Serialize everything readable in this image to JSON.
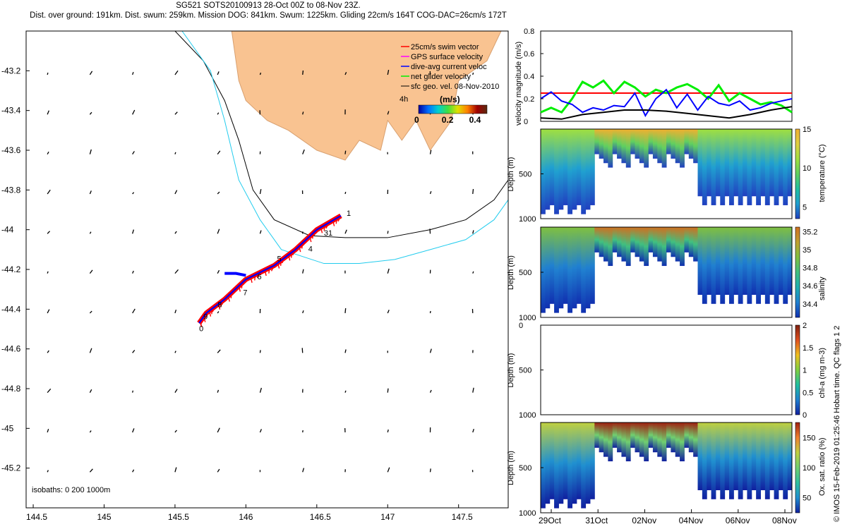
{
  "header": {
    "line1": "SG521 SOTS20100913 28-Oct 00Z to 08-Nov 23Z.",
    "line2": "Dist. over ground: 191km. Dist. swum: 259km. Mission DOG: 841km. Swum: 1225km. Gliding 22cm/s 164T COG-DAC=26cm/s 172T"
  },
  "credit": "© IMOS 15-Feb-2019 01:25:46 Hobart time. QC flags 1  2",
  "colors": {
    "land": "#f9c391",
    "coast": "#d8a070",
    "isobath_200": "#000000",
    "isobath_1000": "#22ccee",
    "track_red": "#ff0000",
    "track_blue": "#0000ff",
    "vel_green": "#00ee00",
    "vel_black": "#000000",
    "vel_ref": "#ff0000"
  },
  "chart_data": [
    {
      "type": "scatter",
      "name": "map",
      "xlim": [
        144.45,
        147.85
      ],
      "ylim": [
        -45.4,
        -43.0
      ],
      "x_ticks": [
        144.5,
        145,
        145.5,
        146,
        146.5,
        147,
        147.5
      ],
      "y_ticks": [
        -43.2,
        -43.4,
        -43.6,
        -43.8,
        -44,
        -44.2,
        -44.4,
        -44.6,
        -44.8,
        -45,
        -45.2
      ],
      "isobath_label": "isobaths: 0   200   1000m",
      "legend": [
        {
          "label": "25cm/s swim vector",
          "color": "#ff0000",
          "marker": "arrow"
        },
        {
          "label": "GPS surface velocity",
          "color": "#ff00ff",
          "marker": "arrow"
        },
        {
          "label": "dive-avg current veloc",
          "color": "#0000ff",
          "marker": "arrow"
        },
        {
          "label": "net glider velocity",
          "color": "#00ee00",
          "marker": "arrow"
        },
        {
          "label": "sfc geo. vel. 08-Nov-2010",
          "color": "#000000",
          "marker": "line"
        }
      ],
      "colorbar": {
        "title": "(m/s)",
        "ticks": [
          "0",
          "0.2",
          "0.4"
        ],
        "range": [
          0,
          0.5
        ]
      },
      "land_polygon": [
        [
          145.9,
          -43.0
        ],
        [
          147.8,
          -43.0
        ],
        [
          147.7,
          -43.15
        ],
        [
          147.5,
          -43.25
        ],
        [
          147.45,
          -43.45
        ],
        [
          147.3,
          -43.6
        ],
        [
          147.2,
          -43.45
        ],
        [
          147.1,
          -43.55
        ],
        [
          147.0,
          -43.45
        ],
        [
          146.95,
          -43.6
        ],
        [
          146.8,
          -43.55
        ],
        [
          146.7,
          -43.65
        ],
        [
          146.5,
          -43.6
        ],
        [
          146.3,
          -43.5
        ],
        [
          146.15,
          -43.45
        ],
        [
          146.0,
          -43.35
        ],
        [
          145.95,
          -43.25
        ],
        [
          145.9,
          -43.0
        ]
      ],
      "isobath_200": [
        [
          145.5,
          -43.0
        ],
        [
          145.7,
          -43.15
        ],
        [
          145.85,
          -43.35
        ],
        [
          145.95,
          -43.55
        ],
        [
          146.05,
          -43.8
        ],
        [
          146.2,
          -43.95
        ],
        [
          146.45,
          -44.03
        ],
        [
          146.7,
          -44.04
        ],
        [
          147.0,
          -44.04
        ],
        [
          147.3,
          -44.0
        ],
        [
          147.55,
          -43.95
        ],
        [
          147.75,
          -43.85
        ],
        [
          147.85,
          -43.75
        ]
      ],
      "isobath_1000": [
        [
          145.55,
          -43.0
        ],
        [
          145.75,
          -43.2
        ],
        [
          145.85,
          -43.45
        ],
        [
          145.95,
          -43.75
        ],
        [
          146.1,
          -43.95
        ],
        [
          146.25,
          -44.1
        ],
        [
          146.55,
          -44.17
        ],
        [
          146.8,
          -44.17
        ],
        [
          147.05,
          -44.15
        ],
        [
          147.3,
          -44.1
        ],
        [
          147.55,
          -44.05
        ],
        [
          147.75,
          -43.95
        ],
        [
          147.85,
          -43.85
        ]
      ],
      "track": [
        [
          146.67,
          -43.93
        ],
        [
          146.5,
          -44.0
        ],
        [
          146.35,
          -44.1
        ],
        [
          146.2,
          -44.18
        ],
        [
          146.0,
          -44.25
        ],
        [
          145.85,
          -44.35
        ],
        [
          145.72,
          -44.42
        ],
        [
          145.67,
          -44.47
        ]
      ],
      "drift_loop": [
        [
          146.0,
          -44.23
        ],
        [
          145.93,
          -44.22
        ],
        [
          145.85,
          -44.22
        ]
      ],
      "day_labels": [
        {
          "t": "1",
          "x": 146.71,
          "y": -43.93
        },
        {
          "t": "31",
          "x": 146.55,
          "y": -44.03
        },
        {
          "t": "4",
          "x": 146.44,
          "y": -44.11
        },
        {
          "t": "5",
          "x": 146.22,
          "y": -44.16
        },
        {
          "t": "6",
          "x": 146.08,
          "y": -44.25
        },
        {
          "t": "7",
          "x": 145.98,
          "y": -44.33
        },
        {
          "t": "8",
          "x": 145.8,
          "y": -44.39
        },
        {
          "t": "9",
          "x": 145.7,
          "y": -44.45
        },
        {
          "t": "0",
          "x": 145.67,
          "y": -44.51
        }
      ]
    },
    {
      "type": "line",
      "name": "velocity",
      "ylabel": "velocity magnitude (m/s)",
      "ylim": [
        0,
        0.8
      ],
      "y_ticks": [
        0,
        0.2,
        0.4,
        0.6,
        0.8
      ],
      "xlim": [
        0,
        12
      ],
      "ref_level": 0.25,
      "series": [
        {
          "color": "#00ee00",
          "x": [
            0,
            0.5,
            1,
            1.5,
            2,
            2.5,
            3,
            3.5,
            4,
            4.5,
            5,
            5.5,
            6,
            6.5,
            7,
            7.5,
            8,
            8.5,
            9,
            9.5,
            10,
            10.5,
            11,
            11.5,
            12
          ],
          "y": [
            0.08,
            0.12,
            0.08,
            0.2,
            0.35,
            0.3,
            0.36,
            0.25,
            0.35,
            0.3,
            0.22,
            0.28,
            0.25,
            0.3,
            0.33,
            0.28,
            0.2,
            0.32,
            0.18,
            0.25,
            0.2,
            0.15,
            0.17,
            0.14,
            0.08
          ]
        },
        {
          "color": "#0000ff",
          "x": [
            0,
            0.5,
            1,
            1.5,
            2,
            2.5,
            3,
            3.5,
            4,
            4.5,
            5,
            5.5,
            6,
            6.5,
            7,
            7.5,
            8,
            8.5,
            9,
            9.5,
            10,
            10.5,
            11,
            11.5,
            12
          ],
          "y": [
            0.2,
            0.26,
            0.18,
            0.15,
            0.08,
            0.12,
            0.1,
            0.14,
            0.13,
            0.25,
            0.05,
            0.2,
            0.28,
            0.12,
            0.24,
            0.1,
            0.22,
            0.16,
            0.14,
            0.18,
            0.1,
            0.12,
            0.16,
            0.18,
            0.2
          ]
        },
        {
          "color": "#000000",
          "x": [
            0,
            1,
            2,
            3,
            4,
            5,
            6,
            7,
            8,
            9,
            10,
            11,
            12
          ],
          "y": [
            0.03,
            0.02,
            0.06,
            0.08,
            0.1,
            0.1,
            0.09,
            0.07,
            0.05,
            0.03,
            0.06,
            0.1,
            0.13
          ]
        }
      ]
    },
    {
      "type": "heatmap",
      "name": "temperature",
      "ylabel": "Depth (m)",
      "cbar_label": "temperature (°C)",
      "cbar_ticks": [
        5,
        10,
        15
      ],
      "cbar_range": [
        3.5,
        15
      ],
      "y_ticks": [
        500,
        1000
      ],
      "ylim": [
        1000,
        0
      ]
    },
    {
      "type": "heatmap",
      "name": "salinity",
      "ylabel": "Depth (m)",
      "cbar_label": "salinity",
      "cbar_ticks": [
        34.4,
        34.6,
        34.8,
        35,
        35.2
      ],
      "cbar_range": [
        34.25,
        35.25
      ],
      "y_ticks": [
        500,
        1000
      ],
      "ylim": [
        1000,
        0
      ]
    },
    {
      "type": "heatmap",
      "name": "chla",
      "ylabel": "Depth (m)",
      "cbar_label": "chl-a (mg m-3)",
      "cbar_ticks": [
        0,
        0.5,
        1,
        1.5,
        2
      ],
      "cbar_range": [
        0,
        2
      ],
      "y_ticks": [
        0,
        500,
        1000
      ],
      "ylim": [
        1000,
        0
      ]
    },
    {
      "type": "heatmap",
      "name": "oxygen",
      "ylabel": "Depth (m)",
      "cbar_label": "Ox. sat. ratio (%)",
      "cbar_ticks": [
        50,
        100,
        150
      ],
      "cbar_range": [
        25,
        175
      ],
      "y_ticks": [
        500,
        1000
      ],
      "ylim": [
        1000,
        0
      ],
      "x_ticks": [
        "29Oct",
        "31Oct",
        "02Nov",
        "04Nov",
        "06Nov",
        "08Nov"
      ]
    }
  ]
}
